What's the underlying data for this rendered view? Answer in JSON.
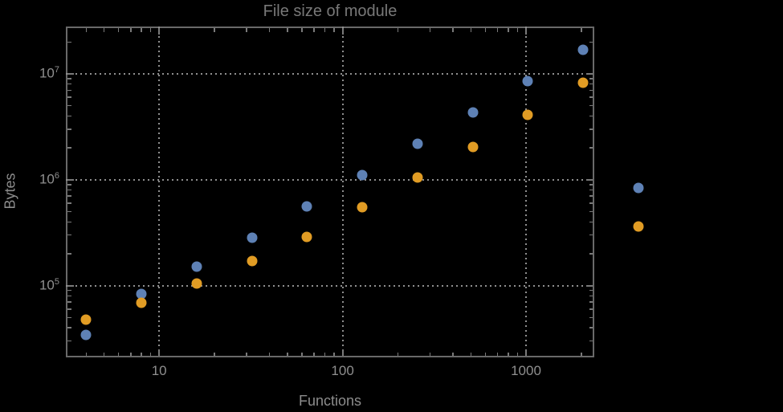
{
  "chart_data": {
    "type": "scatter",
    "title": "File size of module",
    "xlabel": "Functions",
    "ylabel": "Bytes",
    "xscale": "log",
    "yscale": "log",
    "xlim": [
      3.1,
      2355
    ],
    "ylim": [
      21000,
      28000000
    ],
    "grid": "dotted gridlines at major ticks only",
    "legend": "none",
    "x": [
      4,
      8,
      16,
      32,
      64,
      128,
      256,
      512,
      1024,
      2048,
      4096
    ],
    "series": [
      {
        "name": "series-1-blue",
        "color": "#5E81B5",
        "values": [
          34000,
          84000,
          150000,
          285000,
          560000,
          1100000,
          2200000,
          4300000,
          8600000,
          17000000,
          840000
        ]
      },
      {
        "name": "series-2-orange",
        "color": "#E19C24",
        "values": [
          48000,
          69000,
          105000,
          170000,
          290000,
          550000,
          1050000,
          2050000,
          4100000,
          8300000,
          360000
        ]
      }
    ],
    "xticks": [
      {
        "value": 10,
        "label": "10"
      },
      {
        "value": 100,
        "label": "100"
      },
      {
        "value": 1000,
        "label": "1000"
      }
    ],
    "yticks": [
      {
        "value": 100000,
        "base": "10",
        "exp": "5"
      },
      {
        "value": 1000000,
        "base": "10",
        "exp": "6"
      },
      {
        "value": 10000000,
        "base": "10",
        "exp": "7"
      }
    ],
    "note": "last data pair (x=4096) is drawn outside the right edge of the plot frame"
  },
  "colors": {
    "background": "#000000",
    "frame": "#696969",
    "grid": "#8f8f8f",
    "text": "#8c8c8c",
    "title": "#787878",
    "series_blue": "#5E81B5",
    "series_orange": "#E19C24"
  }
}
